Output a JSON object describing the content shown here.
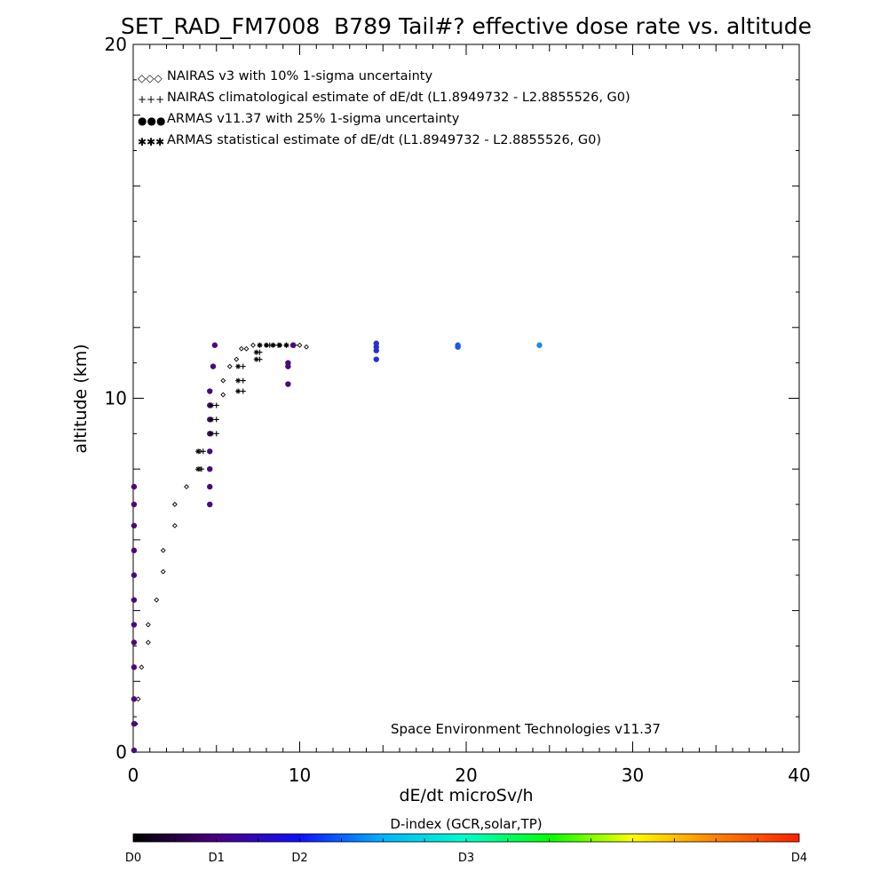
{
  "chart_data": {
    "type": "scatter",
    "title": "SET_RAD_FM7008  B789 Tail#? effective dose rate vs. altitude",
    "xlabel": "dE/dt microSv/h",
    "ylabel": "altitude (km)",
    "xlim": [
      0,
      40
    ],
    "ylim": [
      0,
      20
    ],
    "xticks": [
      0,
      10,
      20,
      30,
      40
    ],
    "yticks": [
      0,
      10,
      20
    ],
    "grid": false,
    "legend_position": "top-left",
    "credit": "Space Environment Technologies v11.37",
    "series": [
      {
        "name": "NAIRAS v3 with 10% 1-sigma uncertainty",
        "marker": "diamond",
        "legend_symbol": "◇◇◇",
        "color": "#000000",
        "points": [
          [
            0.05,
            0.05
          ],
          [
            0.15,
            0.8
          ],
          [
            0.3,
            1.5
          ],
          [
            0.5,
            2.4
          ],
          [
            0.9,
            3.1
          ],
          [
            0.9,
            3.6
          ],
          [
            1.4,
            4.3
          ],
          [
            1.8,
            5.1
          ],
          [
            1.8,
            5.7
          ],
          [
            2.5,
            6.4
          ],
          [
            2.5,
            7.0
          ],
          [
            3.2,
            7.5
          ],
          [
            4.0,
            8.0
          ],
          [
            4.0,
            8.5
          ],
          [
            5.4,
            10.1
          ],
          [
            5.4,
            10.5
          ],
          [
            5.8,
            10.9
          ],
          [
            6.2,
            11.1
          ],
          [
            6.5,
            11.4
          ],
          [
            6.8,
            11.4
          ],
          [
            7.2,
            11.5
          ],
          [
            7.6,
            11.5
          ],
          [
            8.0,
            11.5
          ],
          [
            8.4,
            11.5
          ],
          [
            8.8,
            11.5
          ],
          [
            9.2,
            11.5
          ],
          [
            9.6,
            11.5
          ],
          [
            10.0,
            11.5
          ],
          [
            10.4,
            11.45
          ]
        ]
      },
      {
        "name": "NAIRAS climatological estimate of dE/dt (L1.8949732 - L2.8855526, G0)",
        "marker": "plus",
        "legend_symbol": "+++",
        "color": "#000000",
        "points": [
          [
            4.1,
            8.0
          ],
          [
            4.2,
            8.5
          ],
          [
            5.0,
            9.0
          ],
          [
            5.0,
            9.4
          ],
          [
            5.0,
            9.8
          ],
          [
            6.6,
            10.2
          ],
          [
            6.6,
            10.5
          ],
          [
            6.6,
            10.9
          ],
          [
            7.6,
            11.1
          ],
          [
            7.6,
            11.3
          ],
          [
            8.2,
            11.5
          ],
          [
            8.7,
            11.5
          ],
          [
            9.2,
            11.5
          ],
          [
            9.7,
            11.5
          ]
        ]
      },
      {
        "name": "ARMAS v11.37 with 25% 1-sigma uncertainty",
        "marker": "dot",
        "legend_symbol": "●●●",
        "color": "#1a40d8",
        "points": [
          [
            0.05,
            7.5
          ],
          [
            0.05,
            7.0
          ],
          [
            0.05,
            6.4
          ],
          [
            0.05,
            5.7
          ],
          [
            0.05,
            5.0
          ],
          [
            0.05,
            4.3
          ],
          [
            0.05,
            3.6
          ],
          [
            0.05,
            3.1
          ],
          [
            0.05,
            2.4
          ],
          [
            0.05,
            1.5
          ],
          [
            0.05,
            0.8
          ],
          [
            0.05,
            0.05
          ],
          [
            4.6,
            7.0
          ],
          [
            4.6,
            7.5
          ],
          [
            4.6,
            8.0
          ],
          [
            4.6,
            8.5
          ],
          [
            4.6,
            9.0
          ],
          [
            4.6,
            9.4
          ],
          [
            4.6,
            9.8
          ],
          [
            4.6,
            10.2
          ],
          [
            4.8,
            10.9
          ],
          [
            4.9,
            11.5
          ],
          [
            9.3,
            10.4
          ],
          [
            9.3,
            10.9
          ],
          [
            9.3,
            11.0
          ],
          [
            9.6,
            11.5
          ],
          [
            14.6,
            11.1
          ],
          [
            14.6,
            11.35
          ],
          [
            14.6,
            11.45
          ],
          [
            14.6,
            11.55
          ],
          [
            19.5,
            11.45
          ],
          [
            19.5,
            11.5
          ],
          [
            24.4,
            11.5
          ]
        ]
      },
      {
        "name": "ARMAS statistical estimate of dE/dt (L1.8949732 - L2.8855526, G0)",
        "marker": "asterisk",
        "legend_symbol": "✱✱✱",
        "color": "#000000",
        "points": [
          [
            3.9,
            8.0
          ],
          [
            3.9,
            8.5
          ],
          [
            4.7,
            9.0
          ],
          [
            4.7,
            9.4
          ],
          [
            4.7,
            9.8
          ],
          [
            6.3,
            10.2
          ],
          [
            6.3,
            10.5
          ],
          [
            6.3,
            10.9
          ],
          [
            7.4,
            11.1
          ],
          [
            7.4,
            11.3
          ],
          [
            7.6,
            11.5
          ],
          [
            8.0,
            11.5
          ],
          [
            8.4,
            11.5
          ],
          [
            8.8,
            11.5
          ],
          [
            9.2,
            11.5
          ]
        ]
      }
    ],
    "colorbar": {
      "label": "D-index (GCR,solar,TP)",
      "ticks": [
        "D0",
        "D1",
        "D2",
        "D3",
        "D4"
      ],
      "tick_values": [
        0,
        1,
        2,
        3,
        4
      ],
      "tick_positions": [
        0,
        0.125,
        0.25,
        0.5,
        1.0
      ],
      "colors": [
        "#000000",
        "#4b0082",
        "#1010ff",
        "#00b4ff",
        "#00ffcc",
        "#00ff00",
        "#ffff00",
        "#ff8000",
        "#ff2000"
      ]
    }
  }
}
